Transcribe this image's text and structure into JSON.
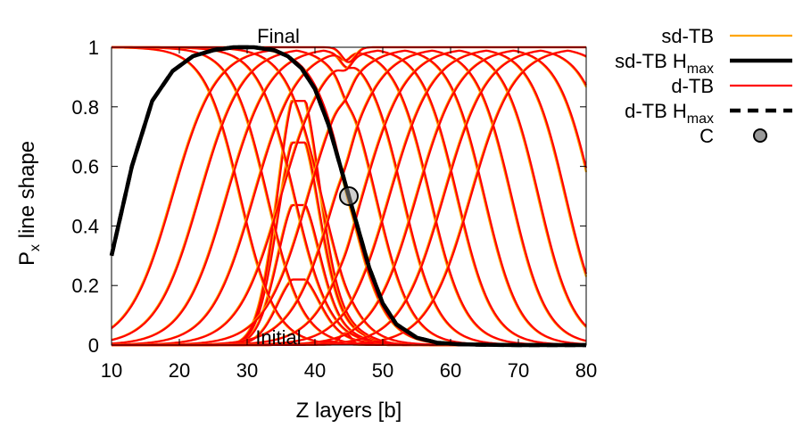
{
  "chart_data": {
    "type": "line",
    "xlabel": "Z layers [b]",
    "ylabel_main": "P",
    "ylabel_sub": "x",
    "ylabel_rest": " line shape",
    "xlim": [
      10,
      80
    ],
    "ylim": [
      0,
      1
    ],
    "x_ticks": [
      "10",
      "20",
      "30",
      "40",
      "50",
      "60",
      "70",
      "80"
    ],
    "y_ticks": [
      "0",
      "0.2",
      "0.4",
      "0.6",
      "0.8",
      "1"
    ],
    "grid": false,
    "legend_position": "outside-right",
    "annotations": {
      "top": "Final",
      "bottom": "Initial"
    },
    "legend": [
      {
        "main": "sd-TB",
        "sub": "",
        "color": "#ffa500",
        "style": "solid"
      },
      {
        "main": "sd-TB H",
        "sub": "max",
        "color": "#000000",
        "style": "thick-solid"
      },
      {
        "main": "d-TB",
        "sub": "",
        "color": "#ff0000",
        "style": "solid"
      },
      {
        "main": "d-TB H",
        "sub": "max",
        "color": "#000000",
        "style": "thick-dashed"
      },
      {
        "main": "C",
        "sub": "",
        "color": "#999999",
        "style": "marker"
      }
    ],
    "series": [
      {
        "kind": "initial",
        "peak": 0.005,
        "x0": null
      },
      {
        "kind": "bump",
        "peak": 0.22,
        "x0": null
      },
      {
        "kind": "bump",
        "peak": 0.47,
        "x0": null
      },
      {
        "kind": "bump",
        "peak": 0.68,
        "x0": null
      },
      {
        "kind": "bump",
        "peak": 0.82,
        "x0": null
      },
      {
        "kind": "sigmoid",
        "peak": 1,
        "x0": 17
      },
      {
        "kind": "sigmoid",
        "peak": 1,
        "x0": 21
      },
      {
        "kind": "sigmoid",
        "peak": 1,
        "x0": 25
      },
      {
        "kind": "sigmoid",
        "peak": 1,
        "x0": 29
      },
      {
        "kind": "sigmoid",
        "peak": 1,
        "x0": 33
      },
      {
        "kind": "sigmoid",
        "peak": 1,
        "x0": 37
      },
      {
        "kind": "sigmoid",
        "peak": 1,
        "x0": 41
      },
      {
        "kind": "sigmoid",
        "peak": 1,
        "x0": 45
      },
      {
        "kind": "sigmoid",
        "peak": 1,
        "x0": 49
      },
      {
        "kind": "sigmoid",
        "peak": 1,
        "x0": 53
      },
      {
        "kind": "sigmoid",
        "peak": 1,
        "x0": 57
      },
      {
        "kind": "sigmoid",
        "peak": 1,
        "x0": 61
      },
      {
        "kind": "sigmoid",
        "peak": 1,
        "x0": 65
      },
      {
        "kind": "sigmoid",
        "peak": 1,
        "x0": 69
      },
      {
        "kind": "sigmoid",
        "peak": 1,
        "x0": 73
      },
      {
        "kind": "sigmoid",
        "peak": 1,
        "x0": 77
      },
      {
        "kind": "final",
        "peak": 1,
        "x0": null
      }
    ],
    "hmax_curve": {
      "x": [
        10,
        13,
        16,
        19,
        22,
        25,
        28,
        31,
        34,
        36,
        38,
        40,
        42,
        44,
        45,
        46,
        48,
        50,
        52,
        55,
        58,
        61,
        65,
        70,
        75,
        80
      ],
      "y": [
        0.3,
        0.6,
        0.82,
        0.92,
        0.97,
        0.99,
        1.0,
        1.0,
        0.99,
        0.97,
        0.93,
        0.86,
        0.74,
        0.58,
        0.5,
        0.42,
        0.26,
        0.14,
        0.07,
        0.025,
        0.008,
        0.003,
        0.001,
        0.0,
        0.0,
        0.0
      ]
    },
    "point_C": {
      "x": 45,
      "y": 0.5
    }
  }
}
